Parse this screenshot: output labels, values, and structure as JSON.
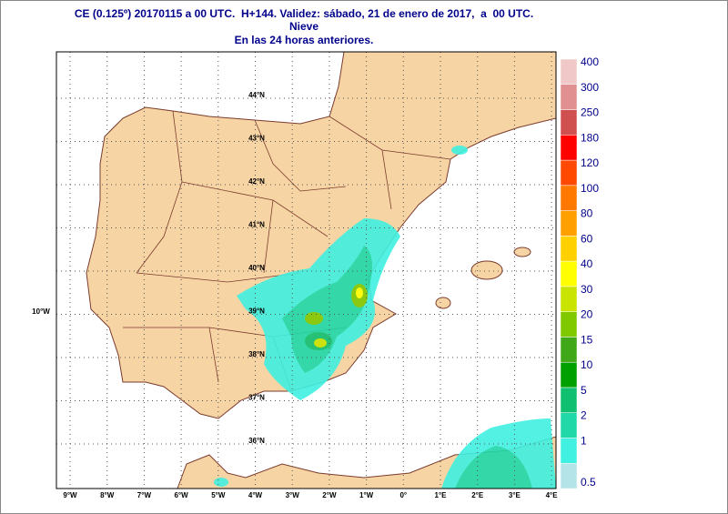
{
  "header": {
    "title": "CE (0.125º) 20170115 a 00 UTC.  H+144. Validez: sábado, 21 de enero de 2017,  a  00 UTC.",
    "variable": "Nieve",
    "period": "En las 24 horas anteriores."
  },
  "legend": {
    "items": [
      {
        "label": "0.5",
        "color": "#b4e4e8"
      },
      {
        "label": "1",
        "color": "#40f0e0"
      },
      {
        "label": "2",
        "color": "#20d8a8"
      },
      {
        "label": "5",
        "color": "#10c070"
      },
      {
        "label": "10",
        "color": "#00a000"
      },
      {
        "label": "15",
        "color": "#40a818"
      },
      {
        "label": "20",
        "color": "#80c800"
      },
      {
        "label": "30",
        "color": "#c8e400"
      },
      {
        "label": "40",
        "color": "#ffff00"
      },
      {
        "label": "60",
        "color": "#ffd000"
      },
      {
        "label": "80",
        "color": "#ffa000"
      },
      {
        "label": "100",
        "color": "#ff7800"
      },
      {
        "label": "120",
        "color": "#ff4800"
      },
      {
        "label": "180",
        "color": "#ff0000"
      },
      {
        "label": "250",
        "color": "#d05050"
      },
      {
        "label": "300",
        "color": "#e09090"
      },
      {
        "label": "400",
        "color": "#f0c8c8"
      }
    ]
  },
  "axes": {
    "longitude": [
      "9°W",
      "8°W",
      "7°W",
      "6°W",
      "5°W",
      "4°W",
      "3°W",
      "2°W",
      "1°W",
      "0°",
      "1°E",
      "2°E",
      "3°E",
      "4°E"
    ],
    "latitude": [
      "44°N",
      "43°N",
      "42°N",
      "41°N",
      "40°N",
      "39°N",
      "38°N",
      "37°N",
      "36°N"
    ],
    "west_edge": "10°W"
  }
}
